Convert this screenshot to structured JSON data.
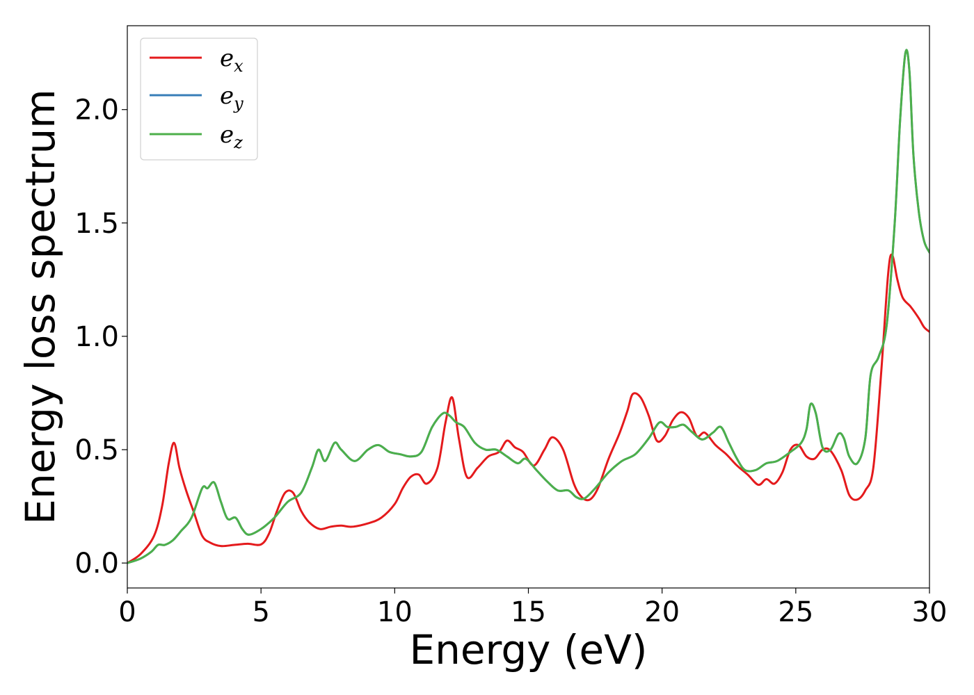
{
  "chart_data": {
    "type": "line",
    "xlabel": "Energy (eV)",
    "ylabel": "Energy loss spectrum",
    "xlim": [
      0,
      30
    ],
    "ylim": [
      -0.11,
      2.37
    ],
    "xticks": [
      0,
      5,
      10,
      15,
      20,
      25,
      30
    ],
    "yticks": [
      0.0,
      0.5,
      1.0,
      1.5,
      2.0
    ],
    "xtick_labels": [
      "0",
      "5",
      "10",
      "15",
      "20",
      "25",
      "30"
    ],
    "ytick_labels": [
      "0.0",
      "0.5",
      "1.0",
      "1.5",
      "2.0"
    ],
    "grid": false,
    "legend_position": "top-left",
    "series": [
      {
        "name": "e_x",
        "legend_base": "e",
        "legend_sub": "x",
        "color": "#e41a1c",
        "x": [
          0,
          0.5,
          1.0,
          1.3,
          1.55,
          1.75,
          1.95,
          2.2,
          2.5,
          2.8,
          3.1,
          3.5,
          4.0,
          4.5,
          5.0,
          5.3,
          5.6,
          5.9,
          6.2,
          6.5,
          6.8,
          7.2,
          7.6,
          8.0,
          8.4,
          9.0,
          9.5,
          10.0,
          10.3,
          10.6,
          10.9,
          11.2,
          11.6,
          11.9,
          12.15,
          12.4,
          12.7,
          13.1,
          13.5,
          13.9,
          14.2,
          14.5,
          14.8,
          15.2,
          15.6,
          15.9,
          16.3,
          16.7,
          17.0,
          17.3,
          17.6,
          18.0,
          18.4,
          18.7,
          18.9,
          19.2,
          19.5,
          19.8,
          20.1,
          20.4,
          20.7,
          21.0,
          21.3,
          21.6,
          22.0,
          22.4,
          22.8,
          23.2,
          23.6,
          23.9,
          24.2,
          24.5,
          24.8,
          25.1,
          25.4,
          25.7,
          26.0,
          26.3,
          26.7,
          27.0,
          27.3,
          27.6,
          27.9,
          28.2,
          28.45,
          28.6,
          28.8,
          29.0,
          29.3,
          29.6,
          29.8,
          30.0
        ],
        "y": [
          0.0,
          0.04,
          0.12,
          0.25,
          0.44,
          0.53,
          0.42,
          0.32,
          0.22,
          0.12,
          0.09,
          0.075,
          0.08,
          0.085,
          0.082,
          0.13,
          0.23,
          0.31,
          0.31,
          0.23,
          0.18,
          0.15,
          0.16,
          0.165,
          0.16,
          0.175,
          0.2,
          0.26,
          0.33,
          0.38,
          0.39,
          0.35,
          0.42,
          0.62,
          0.73,
          0.55,
          0.38,
          0.42,
          0.47,
          0.49,
          0.54,
          0.51,
          0.49,
          0.43,
          0.5,
          0.555,
          0.5,
          0.35,
          0.29,
          0.28,
          0.33,
          0.46,
          0.57,
          0.67,
          0.745,
          0.73,
          0.65,
          0.54,
          0.56,
          0.63,
          0.665,
          0.64,
          0.56,
          0.575,
          0.52,
          0.48,
          0.43,
          0.39,
          0.345,
          0.37,
          0.35,
          0.4,
          0.5,
          0.52,
          0.47,
          0.46,
          0.5,
          0.495,
          0.41,
          0.3,
          0.28,
          0.32,
          0.42,
          0.85,
          1.27,
          1.36,
          1.25,
          1.17,
          1.13,
          1.08,
          1.04,
          1.02
        ]
      },
      {
        "name": "e_y",
        "legend_base": "e",
        "legend_sub": "y",
        "color": "#377eb8",
        "x": [
          0,
          0.5,
          0.9,
          1.15,
          1.4,
          1.7,
          2.0,
          2.4,
          2.8,
          3.0,
          3.25,
          3.5,
          3.75,
          4.05,
          4.3,
          4.55,
          5.0,
          5.5,
          6.0,
          6.5,
          6.9,
          7.15,
          7.4,
          7.75,
          8.0,
          8.5,
          9.0,
          9.4,
          9.8,
          10.2,
          10.6,
          11.0,
          11.4,
          11.8,
          12.05,
          12.3,
          12.6,
          13.0,
          13.4,
          13.8,
          14.2,
          14.6,
          14.9,
          15.3,
          15.7,
          16.1,
          16.5,
          16.8,
          17.1,
          17.5,
          18.0,
          18.5,
          19.0,
          19.5,
          19.9,
          20.2,
          20.5,
          20.8,
          21.1,
          21.5,
          21.9,
          22.2,
          22.5,
          22.8,
          23.1,
          23.5,
          23.9,
          24.3,
          24.8,
          25.2,
          25.4,
          25.55,
          25.75,
          26.0,
          26.3,
          26.6,
          26.8,
          27.0,
          27.3,
          27.6,
          27.8,
          28.1,
          28.4,
          28.7,
          28.9,
          29.1,
          29.25,
          29.4,
          29.6,
          29.8,
          30.0
        ],
        "y": [
          0.0,
          0.02,
          0.05,
          0.08,
          0.08,
          0.1,
          0.14,
          0.2,
          0.33,
          0.33,
          0.355,
          0.27,
          0.195,
          0.2,
          0.15,
          0.125,
          0.15,
          0.2,
          0.27,
          0.31,
          0.42,
          0.5,
          0.45,
          0.53,
          0.5,
          0.45,
          0.5,
          0.52,
          0.49,
          0.48,
          0.47,
          0.49,
          0.6,
          0.66,
          0.65,
          0.62,
          0.6,
          0.53,
          0.5,
          0.5,
          0.47,
          0.44,
          0.46,
          0.41,
          0.36,
          0.32,
          0.32,
          0.29,
          0.285,
          0.33,
          0.4,
          0.45,
          0.48,
          0.55,
          0.62,
          0.6,
          0.6,
          0.61,
          0.58,
          0.545,
          0.575,
          0.6,
          0.53,
          0.46,
          0.41,
          0.41,
          0.44,
          0.45,
          0.49,
          0.53,
          0.59,
          0.7,
          0.66,
          0.51,
          0.5,
          0.57,
          0.55,
          0.47,
          0.44,
          0.55,
          0.83,
          0.91,
          1.05,
          1.5,
          1.95,
          2.25,
          2.17,
          1.8,
          1.55,
          1.42,
          1.37
        ]
      },
      {
        "name": "e_z",
        "legend_base": "e",
        "legend_sub": "z",
        "color": "#4daf4a",
        "x": [
          0,
          0.5,
          0.9,
          1.15,
          1.4,
          1.7,
          2.0,
          2.4,
          2.8,
          3.0,
          3.25,
          3.5,
          3.75,
          4.05,
          4.3,
          4.55,
          5.0,
          5.5,
          6.0,
          6.5,
          6.9,
          7.15,
          7.4,
          7.75,
          8.0,
          8.5,
          9.0,
          9.4,
          9.8,
          10.2,
          10.6,
          11.0,
          11.4,
          11.8,
          12.05,
          12.3,
          12.6,
          13.0,
          13.4,
          13.8,
          14.2,
          14.6,
          14.9,
          15.3,
          15.7,
          16.1,
          16.5,
          16.8,
          17.1,
          17.5,
          18.0,
          18.5,
          19.0,
          19.5,
          19.9,
          20.2,
          20.5,
          20.8,
          21.1,
          21.5,
          21.9,
          22.2,
          22.5,
          22.8,
          23.1,
          23.5,
          23.9,
          24.3,
          24.8,
          25.2,
          25.4,
          25.55,
          25.75,
          26.0,
          26.3,
          26.6,
          26.8,
          27.0,
          27.3,
          27.6,
          27.8,
          28.1,
          28.4,
          28.7,
          28.9,
          29.1,
          29.25,
          29.4,
          29.6,
          29.8,
          30.0
        ],
        "y": [
          0.0,
          0.02,
          0.05,
          0.08,
          0.08,
          0.1,
          0.14,
          0.2,
          0.33,
          0.33,
          0.355,
          0.27,
          0.195,
          0.2,
          0.15,
          0.125,
          0.15,
          0.2,
          0.27,
          0.31,
          0.42,
          0.5,
          0.45,
          0.53,
          0.5,
          0.45,
          0.5,
          0.52,
          0.49,
          0.48,
          0.47,
          0.49,
          0.6,
          0.66,
          0.65,
          0.62,
          0.6,
          0.53,
          0.5,
          0.5,
          0.47,
          0.44,
          0.46,
          0.41,
          0.36,
          0.32,
          0.32,
          0.29,
          0.285,
          0.33,
          0.4,
          0.45,
          0.48,
          0.55,
          0.62,
          0.6,
          0.6,
          0.61,
          0.58,
          0.545,
          0.575,
          0.6,
          0.53,
          0.46,
          0.41,
          0.41,
          0.44,
          0.45,
          0.49,
          0.53,
          0.59,
          0.7,
          0.66,
          0.51,
          0.5,
          0.57,
          0.55,
          0.47,
          0.44,
          0.55,
          0.83,
          0.91,
          1.05,
          1.5,
          1.95,
          2.25,
          2.17,
          1.8,
          1.55,
          1.42,
          1.37
        ]
      }
    ]
  }
}
